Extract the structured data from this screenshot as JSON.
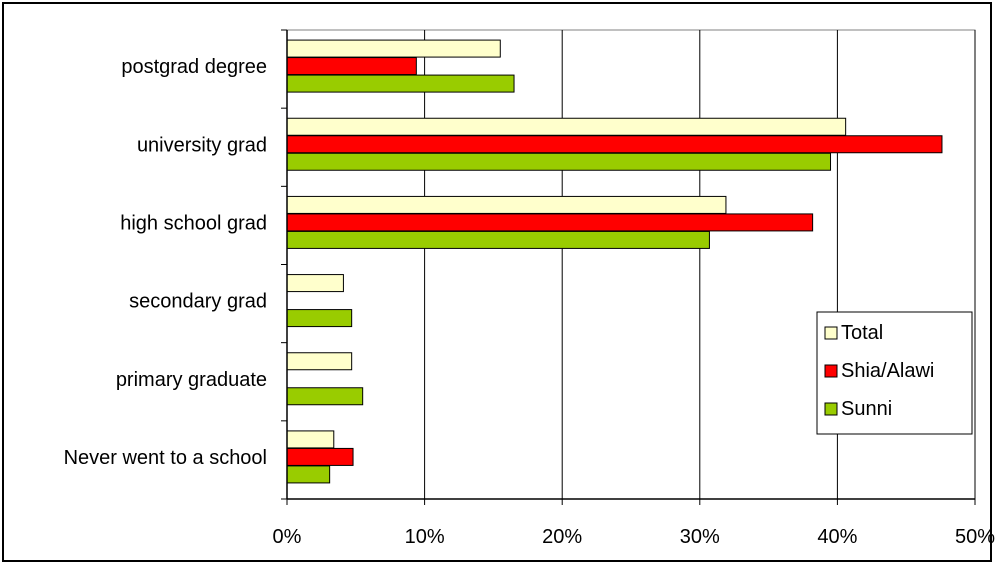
{
  "chart_data": {
    "type": "bar",
    "orientation": "horizontal",
    "title": "",
    "xlabel": "",
    "ylabel": "",
    "xlim": [
      0,
      50
    ],
    "x_ticks": [
      "0%",
      "10%",
      "20%",
      "30%",
      "40%",
      "50%"
    ],
    "grid": "vertical",
    "legend_position": "right",
    "categories": [
      "postgrad degree",
      "university grad",
      "high school grad",
      "secondary grad",
      "primary graduate",
      "Never went to a school"
    ],
    "series": [
      {
        "name": "Total",
        "color": "#ffffcc",
        "values": [
          15.5,
          40.6,
          31.9,
          4.1,
          4.7,
          3.4
        ]
      },
      {
        "name": "Shia/Alawi",
        "color": "#ff0000",
        "values": [
          9.4,
          47.6,
          38.2,
          0,
          0,
          4.8
        ]
      },
      {
        "name": "Sunni",
        "color": "#99cc00",
        "values": [
          16.5,
          39.5,
          30.7,
          4.7,
          5.5,
          3.1
        ]
      }
    ]
  }
}
